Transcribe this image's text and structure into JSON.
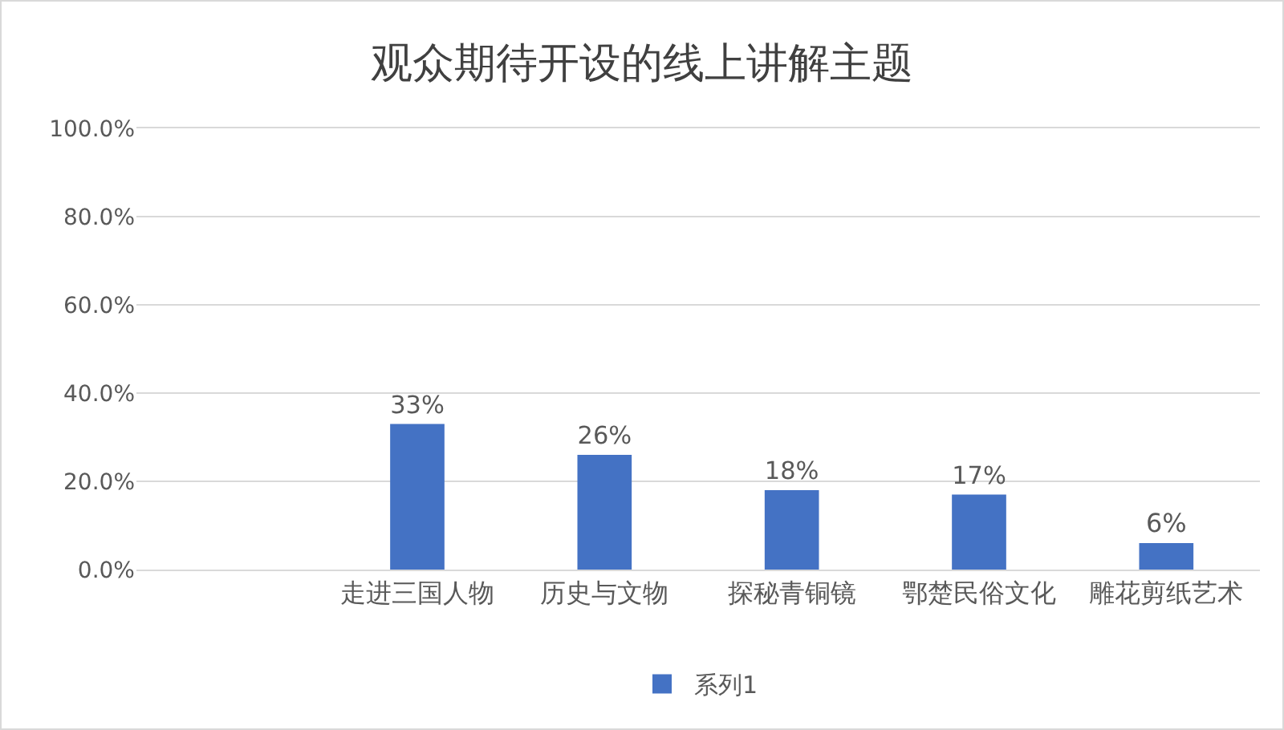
{
  "chart_data": {
    "type": "bar",
    "title": "观众期待开设的线上讲解主题",
    "categories": [
      null,
      "走进三国人物",
      "历史与文物",
      "探秘青铜镜",
      "鄂楚民俗文化",
      "雕花剪纸艺术"
    ],
    "series": [
      {
        "name": "系列1",
        "color": "#4472c4",
        "values": [
          null,
          33,
          26,
          18,
          17,
          6
        ],
        "value_labels": [
          null,
          "33%",
          "26%",
          "18%",
          "17%",
          "6%"
        ]
      }
    ],
    "ylim": [
      0,
      100
    ],
    "yticks": [
      {
        "value": 0,
        "label": "0.0%"
      },
      {
        "value": 20,
        "label": "20.0%"
      },
      {
        "value": 40,
        "label": "40.0%"
      },
      {
        "value": 60,
        "label": "60.0%"
      },
      {
        "value": 80,
        "label": "80.0%"
      },
      {
        "value": 100,
        "label": "100.0%"
      }
    ],
    "grid": "y",
    "legend": "bottom"
  }
}
